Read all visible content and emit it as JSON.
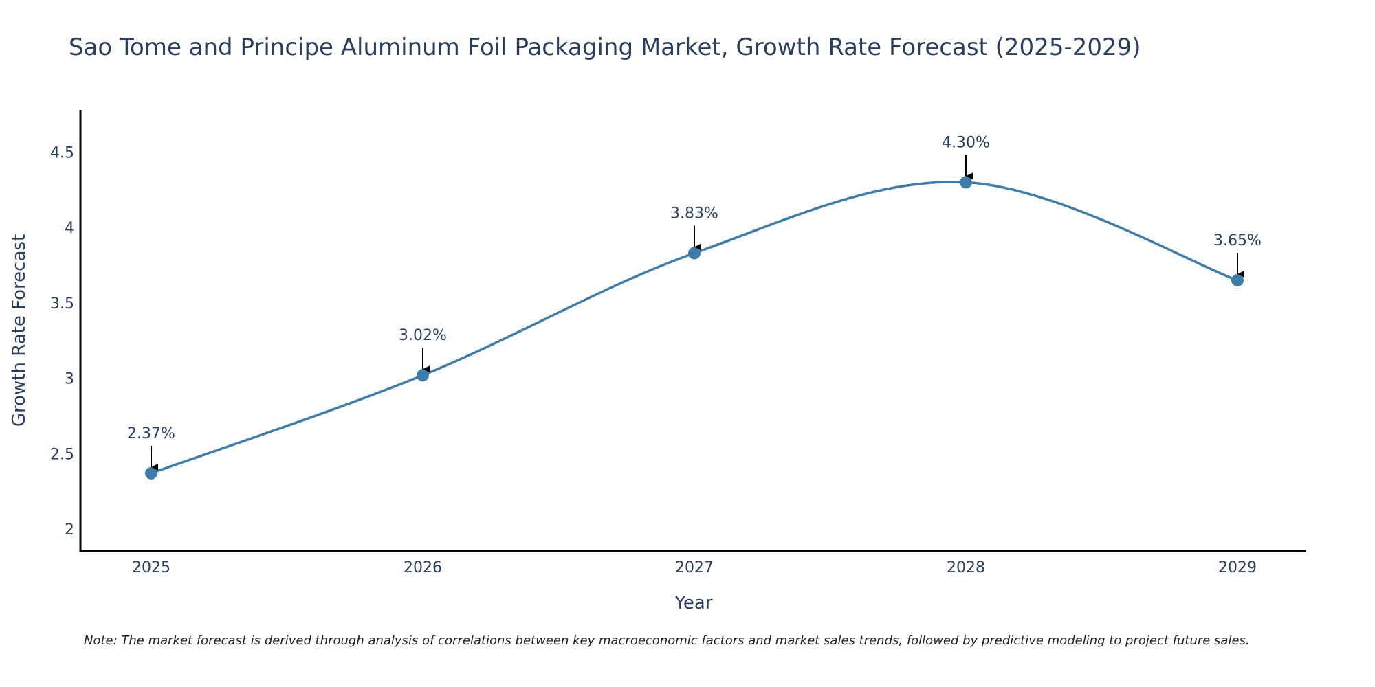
{
  "chart_data": {
    "type": "line",
    "title": "Sao Tome and Principe Aluminum Foil Packaging Market, Growth Rate Forecast (2025-2029)",
    "xlabel": "Year",
    "ylabel": "Growth Rate Forecast",
    "categories": [
      "2025",
      "2026",
      "2027",
      "2028",
      "2029"
    ],
    "series": [
      {
        "name": "Growth Rate Forecast",
        "values": [
          2.37,
          3.02,
          3.83,
          4.3,
          3.65
        ],
        "labels": [
          "2.37%",
          "3.02%",
          "3.83%",
          "4.30%",
          "3.65%"
        ],
        "color": "#3d7dab"
      }
    ],
    "ylim": [
      1.85,
      4.78
    ],
    "yticks": [
      2,
      2.5,
      3,
      3.5,
      4,
      4.5
    ],
    "ytick_labels": [
      "2",
      "2.5",
      "3",
      "3.5",
      "4",
      "4.5"
    ],
    "grid": false,
    "line_shape": "spline",
    "note": "Note: The market forecast is derived through analysis of correlations between key macroeconomic factors and market sales trends, followed by predictive modeling to project future sales."
  },
  "colors": {
    "series": "#3d7dab",
    "axis": "#000000",
    "text": "#2a3f5f",
    "arrow": "#000000"
  }
}
